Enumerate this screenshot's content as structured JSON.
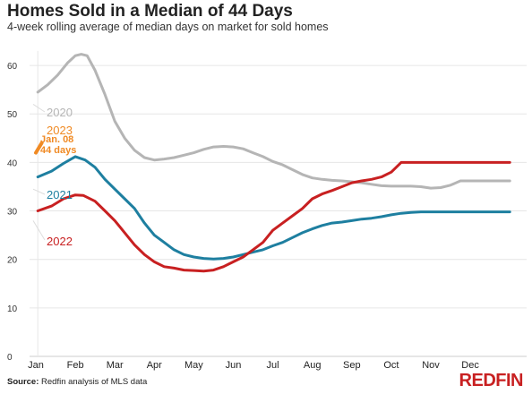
{
  "header": {
    "title": "Homes Sold in a Median of 44 Days",
    "subtitle": "4-week rolling average of median days on market for sold homes"
  },
  "footer": {
    "source_label": "Source:",
    "source_text": " Redfin analysis of MLS data",
    "brand": "REDFIN"
  },
  "chart_data": {
    "type": "line",
    "title": "Homes Sold in a Median of 44 Days",
    "subtitle": "4-week rolling average of median days on market for sold homes",
    "xlabel": "",
    "ylabel": "",
    "x_ticks": [
      "Jan",
      "Feb",
      "Mar",
      "Apr",
      "May",
      "Jun",
      "Jul",
      "Aug",
      "Sep",
      "Oct",
      "Nov",
      "Dec"
    ],
    "xlim": [
      0,
      12.2
    ],
    "ylim": [
      0,
      65
    ],
    "y_ticks": [
      0,
      10,
      20,
      30,
      40,
      50,
      60
    ],
    "grid": true,
    "series": [
      {
        "name": "2020",
        "color": "#b5b5b5",
        "x": [
          0.05,
          0.3,
          0.55,
          0.8,
          1.0,
          1.15,
          1.3,
          1.5,
          1.75,
          2.0,
          2.25,
          2.5,
          2.75,
          3.0,
          3.25,
          3.5,
          3.75,
          4.0,
          4.25,
          4.5,
          4.75,
          5.0,
          5.25,
          5.5,
          5.75,
          6.0,
          6.25,
          6.5,
          6.75,
          7.0,
          7.25,
          7.5,
          7.75,
          8.0,
          8.25,
          8.5,
          8.75,
          9.0,
          9.25,
          9.5,
          9.75,
          10.0,
          10.25,
          10.5,
          10.75,
          11.0,
          11.25,
          11.5,
          11.75,
          12.0
        ],
        "y": [
          54.5,
          56,
          58,
          60.5,
          62,
          62.3,
          62,
          59,
          54,
          48.5,
          45,
          42.5,
          41,
          40.5,
          40.7,
          41,
          41.5,
          42,
          42.7,
          43.2,
          43.3,
          43.2,
          42.8,
          42,
          41.2,
          40.2,
          39.5,
          38.5,
          37.5,
          36.8,
          36.5,
          36.3,
          36.2,
          36,
          35.8,
          35.5,
          35.2,
          35.1,
          35.1,
          35.1,
          35,
          34.7,
          34.8,
          35.3,
          36.2,
          36.2,
          36.2,
          36.2,
          36.2,
          36.2
        ]
      },
      {
        "name": "2021",
        "color": "#1e7fa0",
        "x": [
          0.05,
          0.4,
          0.7,
          1.0,
          1.25,
          1.5,
          1.75,
          2.0,
          2.25,
          2.5,
          2.75,
          3.0,
          3.25,
          3.5,
          3.75,
          4.0,
          4.25,
          4.5,
          4.75,
          5.0,
          5.25,
          5.5,
          5.75,
          6.0,
          6.25,
          6.5,
          6.75,
          7.0,
          7.25,
          7.5,
          7.75,
          8.0,
          8.25,
          8.5,
          8.75,
          9.0,
          9.25,
          9.5,
          9.75,
          10.0,
          10.25,
          10.5,
          10.75,
          11.0,
          11.25,
          11.5,
          11.75,
          12.0
        ],
        "y": [
          37,
          38.2,
          39.8,
          41.2,
          40.5,
          39,
          36.5,
          34.5,
          32.5,
          30.5,
          27.5,
          25,
          23.5,
          22,
          21,
          20.5,
          20.2,
          20.1,
          20.2,
          20.5,
          21,
          21.5,
          22,
          22.8,
          23.5,
          24.5,
          25.5,
          26.3,
          27,
          27.5,
          27.7,
          28,
          28.3,
          28.5,
          28.8,
          29.2,
          29.5,
          29.7,
          29.8,
          29.8,
          29.8,
          29.8,
          29.8,
          29.8,
          29.8,
          29.8,
          29.8,
          29.8
        ]
      },
      {
        "name": "2022",
        "color": "#c82021",
        "x": [
          0.05,
          0.4,
          0.7,
          1.0,
          1.2,
          1.5,
          1.75,
          2.0,
          2.25,
          2.5,
          2.75,
          3.0,
          3.25,
          3.5,
          3.75,
          4.0,
          4.25,
          4.5,
          4.75,
          5.0,
          5.25,
          5.5,
          5.75,
          6.0,
          6.25,
          6.5,
          6.75,
          7.0,
          7.25,
          7.5,
          7.75,
          8.0,
          8.25,
          8.5,
          8.75,
          9.0,
          9.25,
          9.5,
          9.75,
          10.0,
          10.25,
          10.5,
          10.75,
          11.0,
          11.25,
          11.5,
          11.75,
          12.0
        ],
        "y": [
          30,
          31,
          32.5,
          33.3,
          33.2,
          32,
          30,
          28,
          25.5,
          23,
          21,
          19.5,
          18.5,
          18.2,
          17.8,
          17.7,
          17.6,
          17.8,
          18.5,
          19.5,
          20.5,
          22,
          23.5,
          26,
          27.5,
          29,
          30.5,
          32.5,
          33.5,
          34.2,
          35,
          35.8,
          36.2,
          36.5,
          37,
          38,
          40,
          40,
          40,
          40,
          40,
          40,
          40,
          40,
          40,
          40,
          40,
          40
        ]
      },
      {
        "name": "2023",
        "color": "#f08a24",
        "x": [
          0.0,
          0.15
        ],
        "y": [
          42,
          44
        ]
      }
    ],
    "annotations": [
      {
        "text": "Jan. 08",
        "series": "2023"
      },
      {
        "text": "44 days",
        "series": "2023"
      }
    ]
  }
}
